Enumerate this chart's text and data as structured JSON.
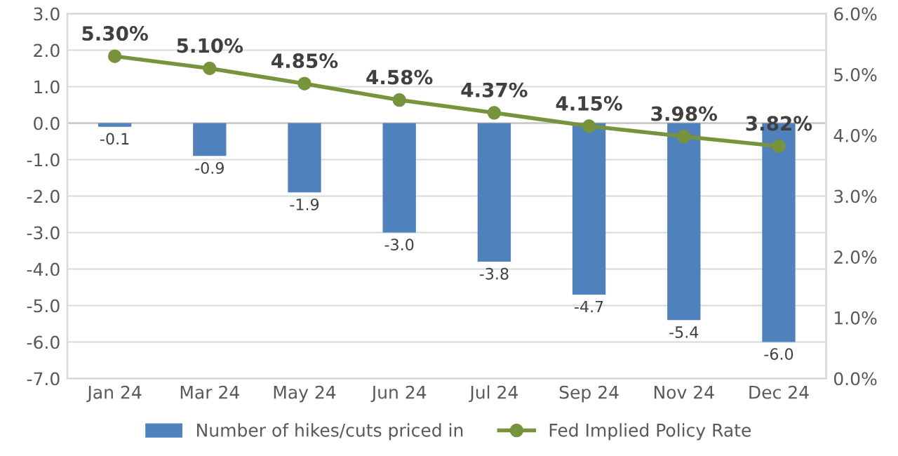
{
  "chart_data": {
    "type": "bar",
    "categories": [
      "Jan 24",
      "Mar 24",
      "May 24",
      "Jun 24",
      "Jul 24",
      "Sep 24",
      "Nov 24",
      "Dec 24"
    ],
    "series": [
      {
        "name": "Number of hikes/cuts priced in",
        "color": "#4f81bd",
        "values": [
          -0.1,
          -0.9,
          -1.9,
          -3.0,
          -3.8,
          -4.7,
          -5.4,
          -6.0
        ],
        "value_labels": [
          "-0.1",
          "-0.9",
          "-1.9",
          "-3.0",
          "-3.8",
          "-4.7",
          "-5.4",
          "-6.0"
        ]
      },
      {
        "name": "Fed Implied Policy Rate",
        "type": "line",
        "axis": "y2",
        "color": "#77933c",
        "marker": "circle",
        "values": [
          5.3,
          5.1,
          4.85,
          4.58,
          4.37,
          4.15,
          3.98,
          3.82
        ],
        "value_labels": [
          "5.30%",
          "5.10%",
          "4.85%",
          "4.58%",
          "4.37%",
          "4.15%",
          "3.98%",
          "3.82%"
        ]
      }
    ],
    "ylim": [
      -7,
      3
    ],
    "yticks": [
      {
        "value": -7,
        "label": "-7.0"
      },
      {
        "value": -6,
        "label": "-6.0"
      },
      {
        "value": -5,
        "label": "-5.0"
      },
      {
        "value": -4,
        "label": "-4.0"
      },
      {
        "value": -3,
        "label": "-3.0"
      },
      {
        "value": -2,
        "label": "-2.0"
      },
      {
        "value": -1,
        "label": "-1.0"
      },
      {
        "value": 0,
        "label": "0.0"
      },
      {
        "value": 1,
        "label": "1.0"
      },
      {
        "value": 2,
        "label": "2.0"
      },
      {
        "value": 3,
        "label": "3.0"
      }
    ],
    "y2lim": [
      0,
      6
    ],
    "y2ticks": [
      {
        "value": 0,
        "label": "0.0%"
      },
      {
        "value": 1,
        "label": "1.0%"
      },
      {
        "value": 2,
        "label": "2.0%"
      },
      {
        "value": 3,
        "label": "3.0%"
      },
      {
        "value": 4,
        "label": "4.0%"
      },
      {
        "value": 5,
        "label": "5.0%"
      },
      {
        "value": 6,
        "label": "6.0%"
      }
    ],
    "grid": "y",
    "legend": "bottom"
  }
}
